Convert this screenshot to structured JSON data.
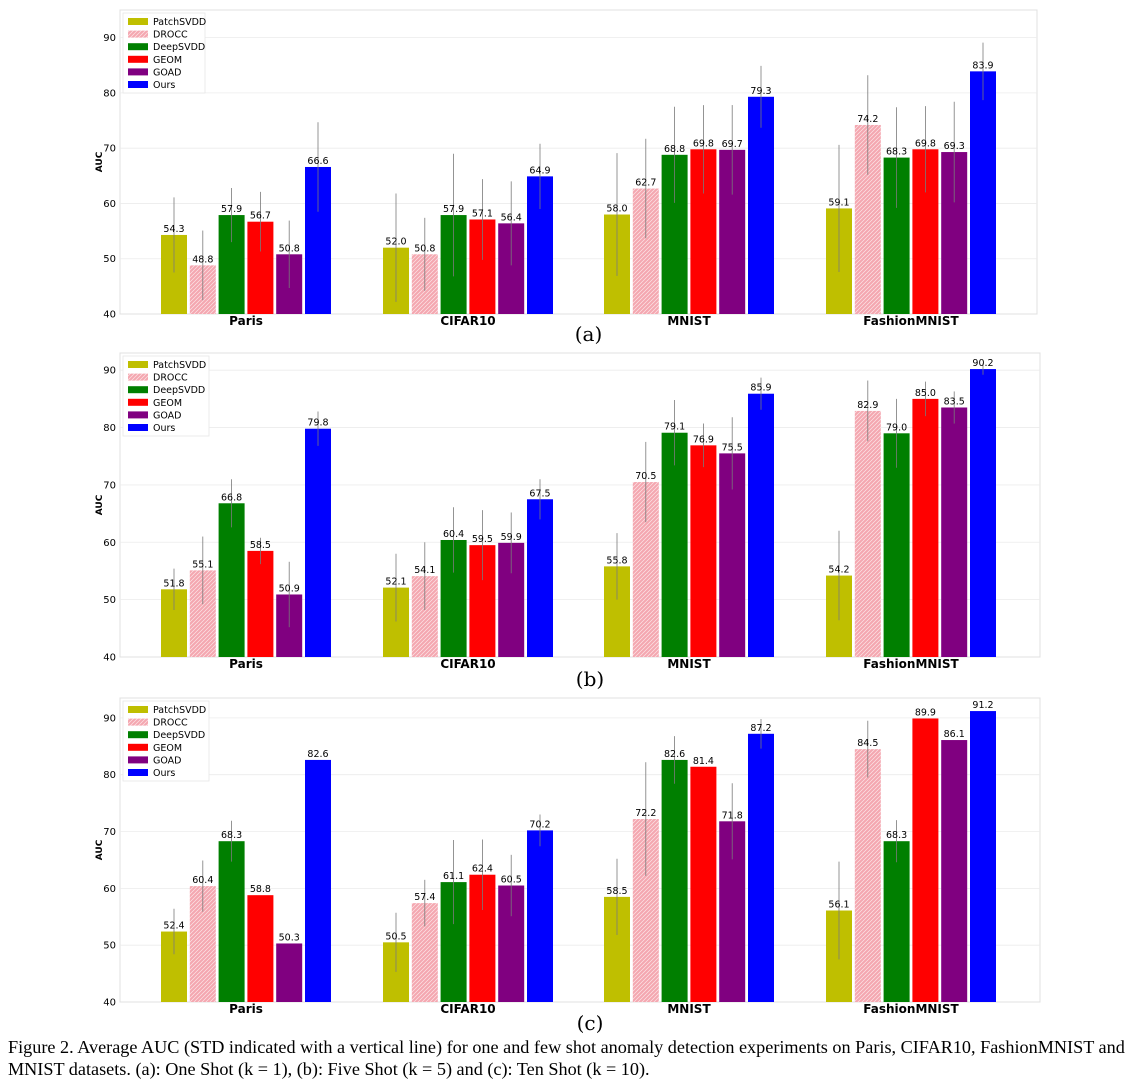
{
  "legend": [
    "PatchSVDD",
    "DROCC",
    "DeepSVDD",
    "GEOM",
    "GOAD",
    "Ours"
  ],
  "colors": [
    "#bfbf00",
    "#f4a7b0",
    "#007f00",
    "#ff0000",
    "#800080",
    "#0000ff"
  ],
  "chart_data": [
    {
      "type": "bar",
      "panel": "(a)",
      "ylabel": "AUC",
      "ylim": [
        40,
        95
      ],
      "yticks": [
        "40",
        "50",
        "60",
        "70",
        "80",
        "90"
      ],
      "categories": [
        "Paris",
        "CIFAR10",
        "MNIST",
        "FashionMNIST"
      ],
      "series": [
        {
          "name": "PatchSVDD",
          "values": [
            54.3,
            52.0,
            58.0,
            59.1
          ],
          "std": [
            6.8,
            9.8,
            11.1,
            11.5
          ]
        },
        {
          "name": "DROCC",
          "values": [
            48.8,
            50.8,
            62.7,
            74.2
          ],
          "std": [
            6.3,
            6.6,
            9.0,
            9.0
          ]
        },
        {
          "name": "DeepSVDD",
          "values": [
            57.9,
            57.9,
            68.8,
            68.3
          ],
          "std": [
            4.9,
            11.1,
            8.7,
            9.1
          ]
        },
        {
          "name": "GEOM",
          "values": [
            56.7,
            57.1,
            69.8,
            69.8
          ],
          "std": [
            5.4,
            7.3,
            8.0,
            7.8
          ]
        },
        {
          "name": "GOAD",
          "values": [
            50.8,
            56.4,
            69.7,
            69.3
          ],
          "std": [
            6.1,
            7.6,
            8.1,
            9.1
          ]
        },
        {
          "name": "Ours",
          "values": [
            66.6,
            64.9,
            79.3,
            83.9
          ],
          "std": [
            8.1,
            5.9,
            5.6,
            5.2
          ]
        }
      ],
      "value_labels": [
        [
          "54.3",
          "48.8",
          "57.9",
          "56.7",
          "50.8",
          "66.6"
        ],
        [
          "52.0",
          "50.8",
          "57.9",
          "57.1",
          "56.4",
          "64.9"
        ],
        [
          "58.0",
          "62.7",
          "68.8",
          "69.8",
          "69.7",
          "79.3"
        ],
        [
          "59.1",
          "74.2",
          "68.3",
          "69.8",
          "69.3",
          "83.9"
        ]
      ]
    },
    {
      "type": "bar",
      "panel": "(b)",
      "ylabel": "AUC",
      "ylim": [
        40,
        93
      ],
      "yticks": [
        "40",
        "50",
        "60",
        "70",
        "80",
        "90"
      ],
      "categories": [
        "Paris",
        "CIFAR10",
        "MNIST",
        "FashionMNIST"
      ],
      "series": [
        {
          "name": "PatchSVDD",
          "values": [
            51.8,
            52.1,
            55.8,
            54.2
          ],
          "std": [
            3.6,
            5.9,
            5.8,
            7.8
          ]
        },
        {
          "name": "DROCC",
          "values": [
            55.1,
            54.1,
            70.5,
            82.9
          ],
          "std": [
            5.9,
            5.9,
            7.0,
            5.3
          ]
        },
        {
          "name": "DeepSVDD",
          "values": [
            66.8,
            60.4,
            79.1,
            79.0
          ],
          "std": [
            4.2,
            5.7,
            5.7,
            6.0
          ]
        },
        {
          "name": "GEOM",
          "values": [
            58.5,
            59.5,
            76.9,
            85.0
          ],
          "std": [
            2.3,
            6.1,
            3.8,
            3.0
          ]
        },
        {
          "name": "GOAD",
          "values": [
            50.9,
            59.9,
            75.5,
            83.5
          ],
          "std": [
            5.7,
            5.3,
            6.3,
            2.8
          ]
        },
        {
          "name": "Ours",
          "values": [
            79.8,
            67.5,
            85.9,
            90.2
          ],
          "std": [
            3.0,
            3.5,
            2.8,
            1.0
          ]
        }
      ],
      "value_labels": [
        [
          "51.8",
          "55.1",
          "66.8",
          "58.5",
          "50.9",
          "79.8"
        ],
        [
          "52.1",
          "54.1",
          "60.4",
          "59.5",
          "59.9",
          "67.5"
        ],
        [
          "55.8",
          "70.5",
          "79.1",
          "76.9",
          "75.5",
          "85.9"
        ],
        [
          "54.2",
          "82.9",
          "79.0",
          "85.0",
          "83.5",
          "90.2"
        ]
      ]
    },
    {
      "type": "bar",
      "panel": "(c)",
      "ylabel": "AUC",
      "ylim": [
        40,
        93.5
      ],
      "yticks": [
        "40",
        "50",
        "60",
        "70",
        "80",
        "90"
      ],
      "categories": [
        "Paris",
        "CIFAR10",
        "MNIST",
        "FashionMNIST"
      ],
      "series": [
        {
          "name": "PatchSVDD",
          "values": [
            52.4,
            50.5,
            58.5,
            56.1
          ],
          "std": [
            4.0,
            5.2,
            6.7,
            8.6
          ]
        },
        {
          "name": "DROCC",
          "values": [
            60.4,
            57.4,
            72.2,
            84.5
          ],
          "std": [
            4.5,
            4.1,
            10.0,
            5.0
          ]
        },
        {
          "name": "DeepSVDD",
          "values": [
            68.3,
            61.1,
            82.6,
            68.3
          ],
          "std": [
            3.6,
            7.4,
            4.2,
            3.7
          ]
        },
        {
          "name": "GEOM",
          "values": [
            58.8,
            62.4,
            81.4,
            89.9
          ],
          "std": [
            0,
            6.2,
            0,
            0
          ]
        },
        {
          "name": "GOAD",
          "values": [
            50.3,
            60.5,
            71.8,
            86.1
          ],
          "std": [
            0,
            5.4,
            6.7,
            0
          ]
        },
        {
          "name": "Ours",
          "values": [
            82.6,
            70.2,
            87.2,
            91.2
          ],
          "std": [
            0,
            2.8,
            2.6,
            0
          ]
        }
      ],
      "value_labels": [
        [
          "52.4",
          "60.4",
          "68.3",
          "58.8",
          "50.3",
          "82.6"
        ],
        [
          "50.5",
          "57.4",
          "61.1",
          "62.4",
          "60.5",
          "70.2"
        ],
        [
          "58.5",
          "72.2",
          "82.6",
          "81.4",
          "71.8",
          "87.2"
        ],
        [
          "56.1",
          "84.5",
          "68.3",
          "89.9",
          "86.1",
          "91.2"
        ]
      ]
    }
  ],
  "caption": "Figure 2. Average AUC (STD indicated with a vertical line) for one and few shot anomaly detection experiments on Paris, CIFAR10, FashionMNIST and MNIST datasets. (a): One Shot (k = 1), (b): Five Shot (k = 5) and (c): Ten Shot (k = 10)."
}
